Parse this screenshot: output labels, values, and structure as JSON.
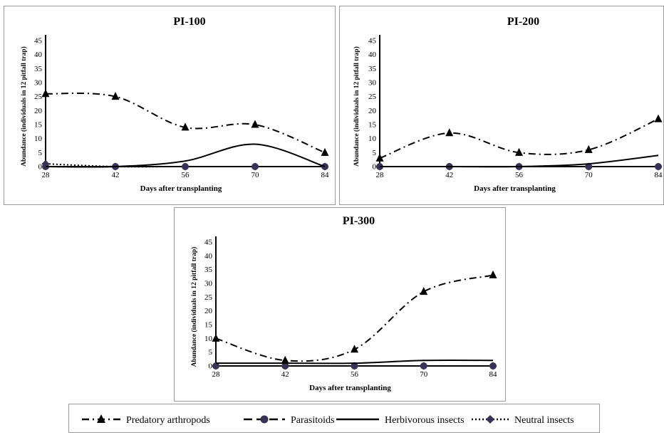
{
  "chart_data": [
    {
      "type": "line",
      "title": "PI-100",
      "xlabel": "Days after transplanting",
      "ylabel": "Abundance (individuals in 12 pitfall trap)",
      "x": [
        28,
        42,
        56,
        70,
        84
      ],
      "ylim": [
        0,
        45
      ],
      "yticks": [
        0,
        5,
        10,
        15,
        20,
        25,
        30,
        35,
        40,
        45
      ],
      "series": [
        {
          "name": "Predatory arthropods",
          "values": [
            26,
            25,
            14,
            15,
            5
          ]
        },
        {
          "name": "Parasitoids",
          "values": [
            0,
            0,
            0,
            0,
            0
          ]
        },
        {
          "name": "Herbivorous insects",
          "values": [
            0,
            0,
            2,
            8,
            0
          ]
        },
        {
          "name": "Neutral insects",
          "values": [
            1,
            0,
            0,
            0,
            0
          ]
        }
      ]
    },
    {
      "type": "line",
      "title": "PI-200",
      "xlabel": "Days after transplanting",
      "ylabel": "Abundance (individuals in 12 pitfall trap)",
      "x": [
        28,
        42,
        56,
        70,
        84
      ],
      "ylim": [
        0,
        45
      ],
      "yticks": [
        0,
        5,
        10,
        15,
        20,
        25,
        30,
        35,
        40,
        45
      ],
      "series": [
        {
          "name": "Predatory arthropods",
          "values": [
            3,
            12,
            5,
            6,
            17
          ]
        },
        {
          "name": "Parasitoids",
          "values": [
            0,
            0,
            0,
            0,
            0
          ]
        },
        {
          "name": "Herbivorous insects",
          "values": [
            0,
            0,
            0,
            1,
            4
          ]
        },
        {
          "name": "Neutral insects",
          "values": [
            0,
            0,
            0,
            0,
            0
          ]
        }
      ]
    },
    {
      "type": "line",
      "title": "PI-300",
      "xlabel": "Days after transplanting",
      "ylabel": "Abundance (individuals in 12 pitfall trap)",
      "x": [
        28,
        42,
        56,
        70,
        84
      ],
      "ylim": [
        0,
        45
      ],
      "yticks": [
        0,
        5,
        10,
        15,
        20,
        25,
        30,
        35,
        40,
        45
      ],
      "series": [
        {
          "name": "Predatory arthropods",
          "values": [
            10,
            2,
            6,
            27,
            33
          ]
        },
        {
          "name": "Parasitoids",
          "values": [
            0,
            0,
            0,
            0,
            0
          ]
        },
        {
          "name": "Herbivorous insects",
          "values": [
            1,
            1,
            1,
            2,
            2
          ]
        },
        {
          "name": "Neutral insects",
          "values": [
            0,
            0,
            0,
            0,
            0
          ]
        }
      ]
    }
  ],
  "legend": {
    "placement": "bottom",
    "items": [
      {
        "label": "Predatory arthropods",
        "line": "dash-dot",
        "marker": "triangle"
      },
      {
        "label": "Parasitoids",
        "line": "long-dash",
        "marker": "circle"
      },
      {
        "label": "Herbivorous insects",
        "line": "solid",
        "marker": "none"
      },
      {
        "label": "Neutral insects",
        "line": "dotted",
        "marker": "diamond"
      }
    ]
  },
  "colors": {
    "lines": "#000000",
    "marker_fill": "#3a3157",
    "border": "#9a9a9a"
  }
}
